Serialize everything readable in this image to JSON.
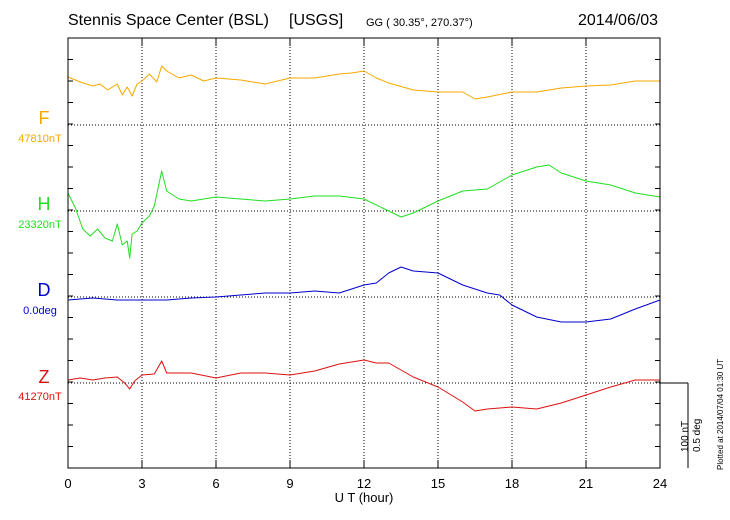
{
  "header": {
    "station": "Stennis Space Center (BSL)",
    "source": "[USGS]",
    "coords": "GG ( 30.35°, 270.37°)",
    "date": "2014/06/03"
  },
  "footer": {
    "plotted": "Plotted at 2014/07/04 01:30 UT"
  },
  "chart_data": {
    "type": "line",
    "xlabel": "U T (hour)",
    "xlim": [
      0,
      24
    ],
    "x_ticks": [
      "0",
      "3",
      "6",
      "9",
      "12",
      "15",
      "18",
      "21",
      "24"
    ],
    "scale": {
      "nT": "100 nT",
      "deg": "0.5 deg"
    },
    "series": [
      {
        "name": "F",
        "baseline_label": "47810nT",
        "color": "#f5a800",
        "x": [
          0,
          0.5,
          1,
          1.3,
          1.6,
          2,
          2.2,
          2.4,
          2.6,
          2.8,
          3,
          3.3,
          3.6,
          3.8,
          4,
          4.5,
          5,
          5.5,
          6,
          7,
          8,
          9,
          10,
          11,
          11.5,
          12,
          12.5,
          13,
          14,
          15,
          16,
          16.5,
          17,
          18,
          19,
          20,
          21,
          22,
          23,
          24
        ],
        "y": [
          48,
          43,
          39,
          41,
          35,
          41,
          30,
          38,
          29,
          41,
          44,
          51,
          43,
          59,
          54,
          47,
          50,
          44,
          47,
          45,
          41,
          47,
          47,
          51,
          52,
          54,
          47,
          42,
          35,
          33,
          33,
          26,
          28,
          33,
          33,
          37,
          39,
          40,
          44,
          44
        ]
      },
      {
        "name": "H",
        "baseline_label": "23320nT",
        "color": "#22dd22",
        "x": [
          0,
          0.3,
          0.6,
          0.9,
          1.2,
          1.5,
          1.8,
          2,
          2.2,
          2.4,
          2.5,
          2.6,
          2.8,
          3,
          3.3,
          3.5,
          3.8,
          4,
          4.5,
          5,
          6,
          7,
          8,
          9,
          10,
          11,
          12,
          13,
          13.5,
          14,
          15,
          16,
          17,
          18,
          19,
          19.5,
          20,
          21,
          22,
          23,
          24
        ],
        "y": [
          18,
          3,
          -18,
          -25,
          -18,
          -27,
          -30,
          -13,
          -34,
          -30,
          -47,
          -23,
          -20,
          -12,
          -5,
          5,
          40,
          20,
          12,
          10,
          14,
          12,
          10,
          12,
          15,
          15,
          12,
          0,
          -6,
          -2,
          10,
          20,
          22,
          36,
          44,
          46,
          38,
          30,
          26,
          18,
          14
        ]
      },
      {
        "name": "D",
        "baseline_label": "0.0deg",
        "color": "#0000cc",
        "x": [
          0,
          1,
          2,
          3,
          4,
          5,
          6,
          7,
          8,
          9,
          10,
          11,
          12,
          12.5,
          13,
          13.5,
          14,
          15,
          16,
          17,
          17.5,
          18,
          19,
          20,
          21,
          22,
          23,
          24
        ],
        "y": [
          -3,
          -1,
          -3,
          -3,
          -3,
          -1,
          0,
          2,
          4,
          4,
          6,
          4,
          12,
          14,
          24,
          30,
          26,
          24,
          12,
          4,
          2,
          -8,
          -20,
          -25,
          -25,
          -22,
          -12,
          -3
        ]
      },
      {
        "name": "Z",
        "baseline_label": "41270nT",
        "color": "#dd1111",
        "x": [
          0,
          0.5,
          1,
          1.5,
          2,
          2.3,
          2.5,
          2.7,
          3,
          3.5,
          3.8,
          4,
          5,
          6,
          7,
          8,
          9,
          10,
          11,
          12,
          12.5,
          13,
          14,
          15,
          16,
          16.5,
          17,
          18,
          19,
          20,
          21,
          22,
          23,
          24
        ],
        "y": [
          3,
          5,
          3,
          5,
          6,
          0,
          -6,
          2,
          8,
          9,
          22,
          10,
          10,
          5,
          10,
          10,
          8,
          12,
          19,
          23,
          20,
          20,
          6,
          -4,
          -19,
          -28,
          -26,
          -24,
          -26,
          -20,
          -12,
          -4,
          3,
          3
        ]
      }
    ]
  }
}
